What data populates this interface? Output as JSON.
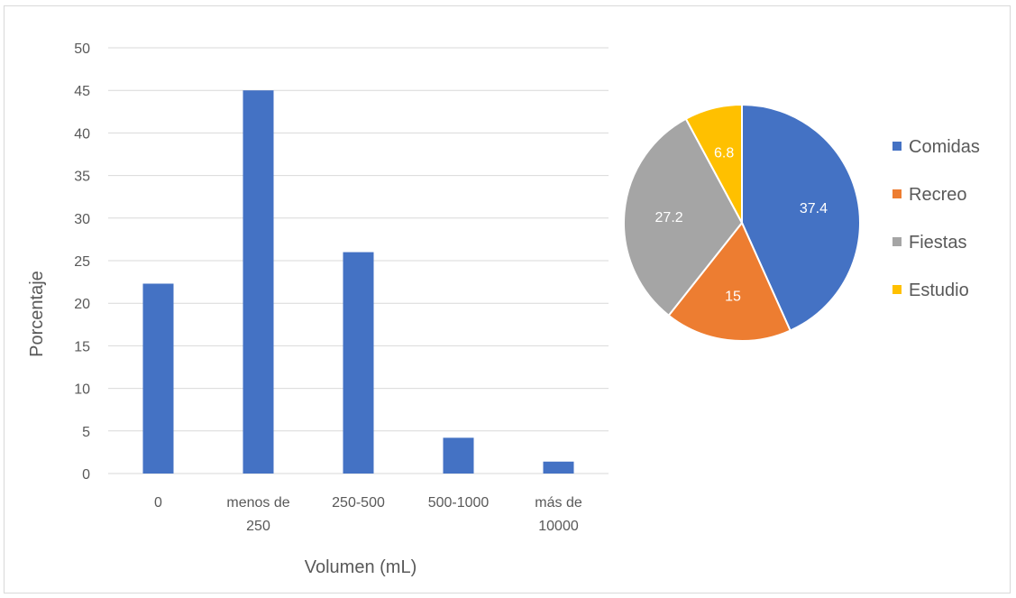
{
  "chart_data": [
    {
      "type": "bar",
      "categories": [
        [
          "0"
        ],
        [
          "menos de",
          "250"
        ],
        [
          "250-500"
        ],
        [
          "500-1000"
        ],
        [
          "más de",
          "10000"
        ]
      ],
      "values": [
        22.3,
        45,
        26,
        4.2,
        1.4
      ],
      "yticks": [
        "0",
        "5",
        "10",
        "15",
        "20",
        "25",
        "30",
        "35",
        "40",
        "45",
        "50"
      ],
      "ylim": [
        0,
        50
      ],
      "xlabel": "Volumen (mL)",
      "ylabel": "Porcentaje",
      "grid": true,
      "color": "#4472c4"
    },
    {
      "type": "pie",
      "slices": [
        {
          "name": "Comidas",
          "value": 37.4,
          "label": "37.4",
          "color": "#4472c4"
        },
        {
          "name": "Recreo",
          "value": 15,
          "label": "15",
          "color": "#ed7d31"
        },
        {
          "name": "Fiestas",
          "value": 27.2,
          "label": "27.2",
          "color": "#a5a5a5"
        },
        {
          "name": "Estudio",
          "value": 6.8,
          "label": "6.8",
          "color": "#ffc000"
        }
      ],
      "legend_position": "right"
    }
  ]
}
